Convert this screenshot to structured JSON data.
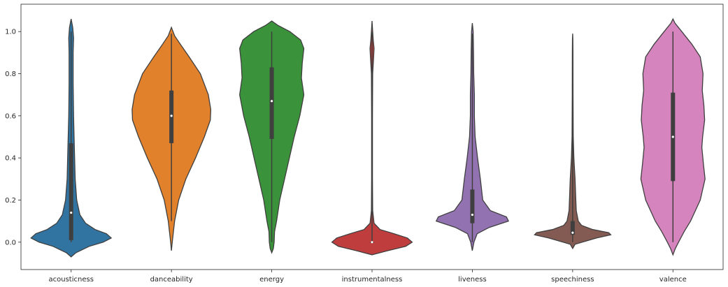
{
  "chart_data": {
    "type": "violin",
    "title": "",
    "xlabel": "",
    "ylabel": "",
    "ylim": [
      -0.13,
      1.13
    ],
    "yticks": [
      "0.0",
      "0.2",
      "0.4",
      "0.6",
      "0.8",
      "1.0"
    ],
    "grid": false,
    "categories": [
      "acousticness",
      "danceability",
      "energy",
      "instrumentalness",
      "liveness",
      "speechiness",
      "valence"
    ],
    "colors": [
      "#3274a1",
      "#e1812c",
      "#3a923a",
      "#c03d3e",
      "#9372b2",
      "#845b53",
      "#d684bd"
    ],
    "series": [
      {
        "min": 0.0,
        "q1": 0.01,
        "median": 0.14,
        "q3": 0.47,
        "max": 1.0,
        "profile": [
          [
            -0.07,
            0.0
          ],
          [
            -0.05,
            0.12
          ],
          [
            -0.02,
            0.45
          ],
          [
            0.0,
            0.8
          ],
          [
            0.02,
            1.0
          ],
          [
            0.04,
            0.88
          ],
          [
            0.06,
            0.6
          ],
          [
            0.09,
            0.36
          ],
          [
            0.13,
            0.22
          ],
          [
            0.2,
            0.14
          ],
          [
            0.3,
            0.1
          ],
          [
            0.45,
            0.08
          ],
          [
            0.6,
            0.06
          ],
          [
            0.75,
            0.05
          ],
          [
            0.9,
            0.05
          ],
          [
            0.97,
            0.06
          ],
          [
            1.02,
            0.04
          ],
          [
            1.06,
            0.0
          ]
        ]
      },
      {
        "min": 0.1,
        "q1": 0.47,
        "median": 0.6,
        "q3": 0.72,
        "max": 0.99,
        "profile": [
          [
            -0.04,
            0.0
          ],
          [
            0.0,
            0.02
          ],
          [
            0.05,
            0.05
          ],
          [
            0.1,
            0.08
          ],
          [
            0.2,
            0.18
          ],
          [
            0.3,
            0.36
          ],
          [
            0.4,
            0.6
          ],
          [
            0.5,
            0.82
          ],
          [
            0.58,
            0.97
          ],
          [
            0.63,
            0.98
          ],
          [
            0.7,
            0.92
          ],
          [
            0.8,
            0.72
          ],
          [
            0.88,
            0.44
          ],
          [
            0.94,
            0.22
          ],
          [
            0.98,
            0.08
          ],
          [
            1.02,
            0.0
          ]
        ]
      },
      {
        "min": 0.0,
        "q1": 0.49,
        "median": 0.67,
        "q3": 0.83,
        "max": 1.0,
        "profile": [
          [
            -0.05,
            0.0
          ],
          [
            -0.03,
            0.04
          ],
          [
            0.0,
            0.06
          ],
          [
            0.05,
            0.07
          ],
          [
            0.1,
            0.12
          ],
          [
            0.2,
            0.2
          ],
          [
            0.3,
            0.32
          ],
          [
            0.4,
            0.44
          ],
          [
            0.5,
            0.56
          ],
          [
            0.6,
            0.7
          ],
          [
            0.7,
            0.8
          ],
          [
            0.78,
            0.74
          ],
          [
            0.85,
            0.76
          ],
          [
            0.92,
            0.8
          ],
          [
            0.96,
            0.72
          ],
          [
            1.0,
            0.45
          ],
          [
            1.03,
            0.15
          ],
          [
            1.05,
            0.0
          ]
        ]
      },
      {
        "min": 0.0,
        "q1": 0.0,
        "median": 0.0,
        "q3": 0.0,
        "max": 1.0,
        "profile": [
          [
            -0.06,
            0.0
          ],
          [
            -0.04,
            0.4
          ],
          [
            -0.02,
            0.84
          ],
          [
            0.0,
            1.0
          ],
          [
            0.02,
            0.88
          ],
          [
            0.04,
            0.55
          ],
          [
            0.06,
            0.2
          ],
          [
            0.09,
            0.05
          ],
          [
            0.15,
            0.015
          ],
          [
            0.3,
            0.01
          ],
          [
            0.6,
            0.01
          ],
          [
            0.8,
            0.015
          ],
          [
            0.88,
            0.04
          ],
          [
            0.92,
            0.05
          ],
          [
            0.96,
            0.03
          ],
          [
            1.0,
            0.015
          ],
          [
            1.05,
            0.0
          ]
        ]
      },
      {
        "min": 0.0,
        "q1": 0.09,
        "median": 0.13,
        "q3": 0.25,
        "max": 0.99,
        "profile": [
          [
            -0.04,
            0.0
          ],
          [
            0.0,
            0.04
          ],
          [
            0.04,
            0.12
          ],
          [
            0.07,
            0.42
          ],
          [
            0.1,
            0.9
          ],
          [
            0.12,
            0.85
          ],
          [
            0.15,
            0.45
          ],
          [
            0.2,
            0.26
          ],
          [
            0.3,
            0.2
          ],
          [
            0.4,
            0.13
          ],
          [
            0.5,
            0.07
          ],
          [
            0.6,
            0.05
          ],
          [
            0.7,
            0.05
          ],
          [
            0.8,
            0.035
          ],
          [
            0.9,
            0.03
          ],
          [
            1.0,
            0.02
          ],
          [
            1.04,
            0.0
          ]
        ]
      },
      {
        "min": 0.0,
        "q1": 0.035,
        "median": 0.045,
        "q3": 0.1,
        "max": 0.97,
        "profile": [
          [
            -0.03,
            0.0
          ],
          [
            -0.01,
            0.06
          ],
          [
            0.02,
            0.6
          ],
          [
            0.035,
            0.95
          ],
          [
            0.045,
            0.9
          ],
          [
            0.06,
            0.5
          ],
          [
            0.08,
            0.22
          ],
          [
            0.1,
            0.14
          ],
          [
            0.15,
            0.09
          ],
          [
            0.2,
            0.08
          ],
          [
            0.3,
            0.06
          ],
          [
            0.4,
            0.03
          ],
          [
            0.5,
            0.015
          ],
          [
            0.7,
            0.01
          ],
          [
            0.9,
            0.008
          ],
          [
            0.97,
            0.005
          ],
          [
            0.99,
            0.0
          ]
        ]
      },
      {
        "min": 0.0,
        "q1": 0.29,
        "median": 0.5,
        "q3": 0.71,
        "max": 1.0,
        "profile": [
          [
            -0.06,
            0.0
          ],
          [
            -0.03,
            0.06
          ],
          [
            0.0,
            0.14
          ],
          [
            0.05,
            0.28
          ],
          [
            0.1,
            0.44
          ],
          [
            0.2,
            0.68
          ],
          [
            0.3,
            0.8
          ],
          [
            0.37,
            0.76
          ],
          [
            0.45,
            0.72
          ],
          [
            0.5,
            0.74
          ],
          [
            0.58,
            0.79
          ],
          [
            0.65,
            0.77
          ],
          [
            0.72,
            0.73
          ],
          [
            0.8,
            0.75
          ],
          [
            0.88,
            0.68
          ],
          [
            0.94,
            0.47
          ],
          [
            1.0,
            0.22
          ],
          [
            1.04,
            0.05
          ],
          [
            1.06,
            0.0
          ]
        ]
      }
    ]
  }
}
